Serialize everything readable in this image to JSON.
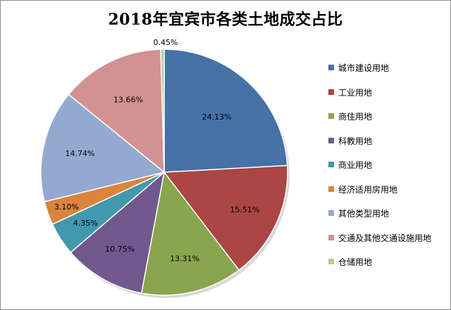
{
  "chart_data": {
    "type": "pie",
    "title": "2018年宜宾市各类土地成交占比",
    "legend_position": "right",
    "slices": [
      {
        "name": "城市建设用地",
        "value": 24.13,
        "label": "24.13%",
        "color": "#4572a7"
      },
      {
        "name": "工业用地",
        "value": 15.51,
        "label": "15.51%",
        "color": "#aa4643"
      },
      {
        "name": "商住用地",
        "value": 13.31,
        "label": "13.31%",
        "color": "#89a54e"
      },
      {
        "name": "科教用地",
        "value": 10.75,
        "label": "10.75%",
        "color": "#71588f"
      },
      {
        "name": "商业用地",
        "value": 4.35,
        "label": "4.35%",
        "color": "#4198af"
      },
      {
        "name": "经济适用房用地",
        "value": 3.1,
        "label": "3.10%",
        "color": "#db843d"
      },
      {
        "name": "其他类型用地",
        "value": 14.74,
        "label": "14.74%",
        "color": "#93a9cf"
      },
      {
        "name": "交通及其他交通设施用地",
        "value": 13.66,
        "label": "13.66%",
        "color": "#d19392"
      },
      {
        "name": "仓储用地",
        "value": 0.45,
        "label": "0.45%",
        "color": "#b9cd96"
      }
    ]
  }
}
